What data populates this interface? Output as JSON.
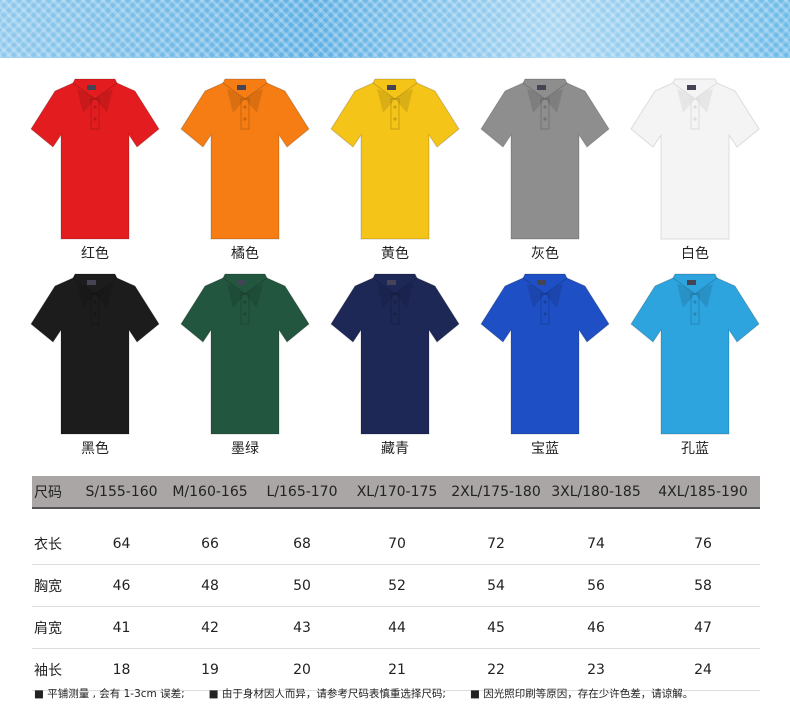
{
  "colors": [
    {
      "label": "红色",
      "hex": "#e31d1f"
    },
    {
      "label": "橘色",
      "hex": "#f57d14"
    },
    {
      "label": "黄色",
      "hex": "#f5c418"
    },
    {
      "label": "灰色",
      "hex": "#8e8e8e"
    },
    {
      "label": "白色",
      "hex": "#f4f4f4"
    },
    {
      "label": "黑色",
      "hex": "#1c1c1c"
    },
    {
      "label": "墨绿",
      "hex": "#23563f"
    },
    {
      "label": "藏青",
      "hex": "#1e2857"
    },
    {
      "label": "宝蓝",
      "hex": "#1f4fc4"
    },
    {
      "label": "孔蓝",
      "hex": "#2ea4df"
    }
  ],
  "size_table": {
    "header": [
      "尺码",
      "S/155-160",
      "M/160-165",
      "L/165-170",
      "XL/170-175",
      "2XL/175-180",
      "3XL/180-185",
      "4XL/185-190"
    ],
    "rows": [
      [
        "衣长",
        "64",
        "66",
        "68",
        "70",
        "72",
        "74",
        "76"
      ],
      [
        "胸宽",
        "46",
        "48",
        "50",
        "52",
        "54",
        "56",
        "58"
      ],
      [
        "肩宽",
        "41",
        "42",
        "43",
        "44",
        "45",
        "46",
        "47"
      ],
      [
        "袖长",
        "18",
        "19",
        "20",
        "21",
        "22",
        "23",
        "24"
      ]
    ]
  },
  "notes": [
    "平铺测量 , 会有 1-3cm 误差;",
    "由于身材因人而异，请参考尺码表慎重选择尺码;",
    "因光照印刷等原因，存在少许色差，请谅解。"
  ]
}
